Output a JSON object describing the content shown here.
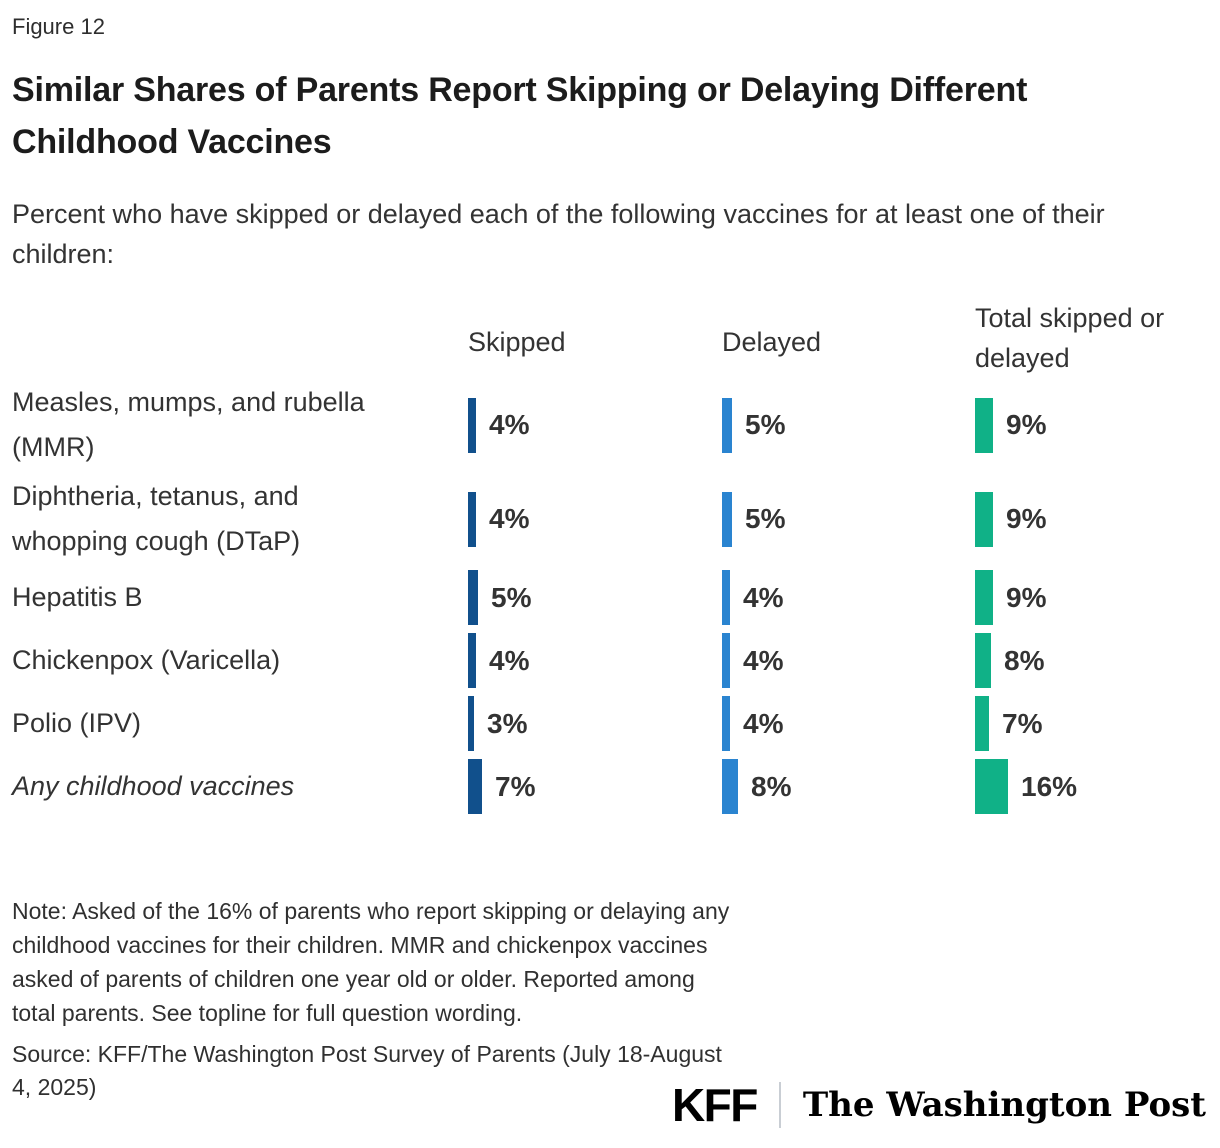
{
  "figure_label": "Figure 12",
  "title": "Similar Shares of Parents Report Skipping or Delaying Different Childhood Vaccines",
  "subtitle": "Percent who have skipped or delayed each of the following vaccines for at least one of their children:",
  "chart_data": {
    "type": "bar",
    "orientation": "horizontal",
    "unit": "%",
    "xlim": [
      0,
      20
    ],
    "grid": false,
    "legend_position": "column-headers",
    "categories": [
      {
        "label": "Measles, mumps, and rubella (MMR)",
        "lines": [
          "Measles, mumps, and rubella",
          "(MMR)"
        ],
        "italic": false
      },
      {
        "label": "Diphtheria, tetanus, and whopping cough (DTaP)",
        "lines": [
          "Diphtheria, tetanus, and",
          "whopping cough (DTaP)"
        ],
        "italic": false
      },
      {
        "label": "Hepatitis B",
        "lines": [
          "Hepatitis B"
        ],
        "italic": false
      },
      {
        "label": "Chickenpox (Varicella)",
        "lines": [
          "Chickenpox (Varicella)"
        ],
        "italic": false
      },
      {
        "label": "Polio (IPV)",
        "lines": [
          "Polio (IPV)"
        ],
        "italic": false
      },
      {
        "label": "Any childhood vaccines",
        "lines": [
          "Any childhood vaccines"
        ],
        "italic": true
      }
    ],
    "series": [
      {
        "name": "Skipped",
        "color": "#11508C",
        "values": [
          4,
          4,
          5,
          4,
          3,
          7
        ]
      },
      {
        "name": "Delayed",
        "color": "#2A84D0",
        "values": [
          5,
          5,
          4,
          4,
          4,
          8
        ]
      },
      {
        "name": "Total skipped or delayed",
        "color": "#10B187",
        "values": [
          9,
          9,
          9,
          8,
          7,
          16
        ]
      }
    ],
    "value_labels": [
      [
        "4%",
        "5%",
        "9%"
      ],
      [
        "4%",
        "5%",
        "9%"
      ],
      [
        "5%",
        "4%",
        "9%"
      ],
      [
        "4%",
        "4%",
        "8%"
      ],
      [
        "3%",
        "4%",
        "7%"
      ],
      [
        "7%",
        "8%",
        "16%"
      ]
    ]
  },
  "note": "Note: Asked of the 16% of parents who report skipping or delaying any childhood vaccines for their children. MMR and chickenpox vaccines asked of parents of children one year old or older. Reported among total parents. See topline for full question wording.",
  "source": "Source: KFF/The Washington Post Survey of Parents (July 18-August 4, 2025)",
  "footer_logos": {
    "kff": "KFF",
    "wapo": "The Washington Post"
  }
}
